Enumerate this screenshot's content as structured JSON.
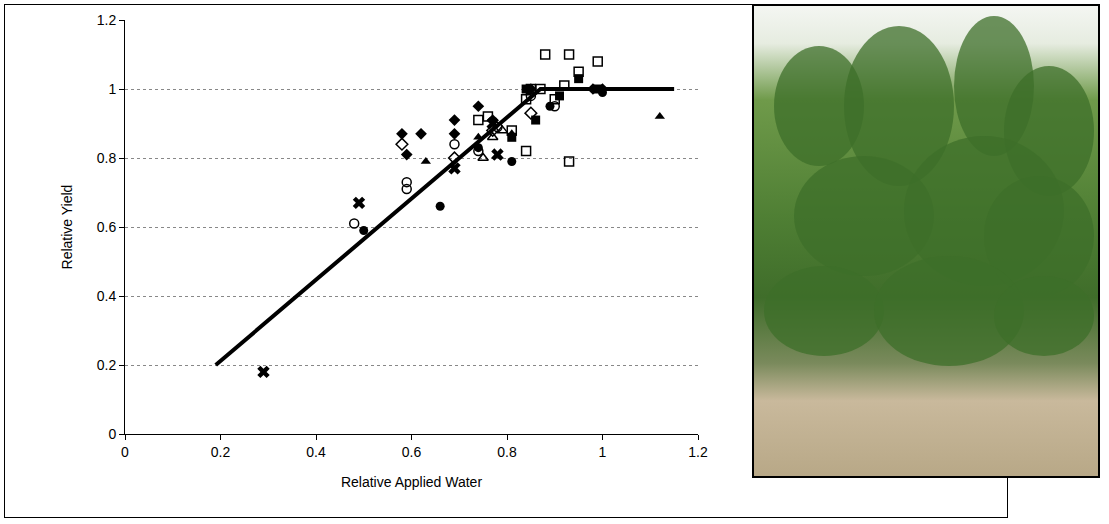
{
  "chart_data": {
    "type": "scatter",
    "x_label": "Relative Applied Water",
    "y_label": "Relative Yield",
    "xlim": [
      0,
      1.2
    ],
    "ylim": [
      0,
      1.2
    ],
    "xticks": [
      0,
      0.2,
      0.4,
      0.6,
      0.8,
      1,
      1.2
    ],
    "yticks": [
      0,
      0.2,
      0.4,
      0.6,
      0.8,
      1,
      1.2
    ],
    "grid": "y",
    "series": [
      {
        "type": "line",
        "color": "#000000",
        "line_style": "solid",
        "x": [
          0.19,
          0.87,
          1.15
        ],
        "values": [
          0.2,
          1.0,
          1.0
        ]
      },
      {
        "marker": "square-open",
        "color": "#000000",
        "x": [
          0.88,
          0.93,
          0.99,
          0.95,
          0.92,
          0.9,
          0.84,
          0.93,
          0.84,
          0.81,
          0.74,
          0.76,
          0.85,
          0.87
        ],
        "values": [
          1.1,
          1.1,
          1.08,
          1.05,
          1.01,
          0.97,
          0.97,
          0.79,
          0.82,
          0.88,
          0.91,
          0.92,
          1.0,
          1.0
        ]
      },
      {
        "marker": "square",
        "color": "#000000",
        "x": [
          0.86,
          0.91,
          0.95,
          0.84,
          0.81,
          0.99
        ],
        "values": [
          0.91,
          0.98,
          1.03,
          1.0,
          0.86,
          1.0
        ]
      },
      {
        "marker": "diamond",
        "color": "#000000",
        "x": [
          0.58,
          0.62,
          0.59,
          0.69,
          0.69,
          0.74,
          0.77,
          0.85,
          0.98,
          1.0
        ],
        "values": [
          0.87,
          0.87,
          0.81,
          0.91,
          0.87,
          0.95,
          0.91,
          1.0,
          1.0,
          1.0
        ]
      },
      {
        "marker": "diamond-open",
        "color": "#000000",
        "x": [
          0.58,
          0.69,
          0.85,
          0.77
        ],
        "values": [
          0.84,
          0.8,
          0.93,
          0.88
        ]
      },
      {
        "marker": "circle",
        "color": "#000000",
        "x": [
          0.5,
          0.66,
          0.81,
          0.74,
          1.0,
          0.89
        ],
        "values": [
          0.59,
          0.66,
          0.79,
          0.83,
          0.99,
          0.95
        ]
      },
      {
        "marker": "circle-open",
        "color": "#000000",
        "x": [
          0.48,
          0.59,
          0.59,
          0.69,
          0.74,
          0.85,
          0.9,
          0.78
        ],
        "values": [
          0.61,
          0.73,
          0.71,
          0.84,
          0.82,
          0.98,
          0.95,
          0.89
        ]
      },
      {
        "marker": "triangle-up",
        "color": "#000000",
        "x": [
          0.63,
          1.12,
          0.81,
          0.74
        ],
        "values": [
          0.79,
          0.92,
          0.87,
          0.86
        ]
      },
      {
        "marker": "triangle-up-open",
        "color": "#000000",
        "x": [
          0.75,
          0.79,
          0.77
        ],
        "values": [
          0.8,
          0.88,
          0.86
        ]
      },
      {
        "marker": "x",
        "color": "#000000",
        "x": [
          0.29,
          0.49,
          0.69,
          0.78,
          0.77
        ],
        "values": [
          0.18,
          0.67,
          0.77,
          0.81,
          0.9
        ]
      }
    ]
  }
}
